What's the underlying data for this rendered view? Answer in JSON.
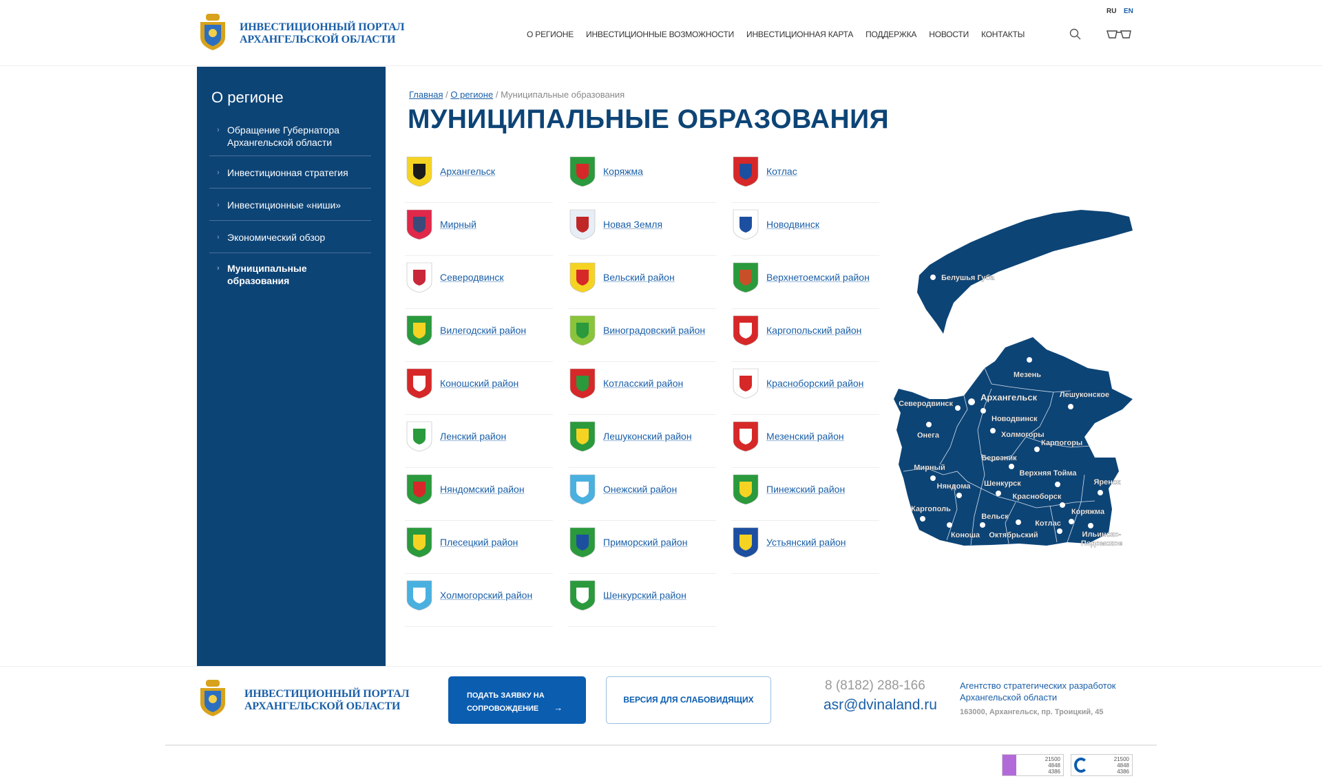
{
  "header": {
    "logo_title_line1": "ИНВЕСТИЦИОННЫЙ ПОРТАЛ",
    "logo_title_line2": "АРХАНГЕЛЬСКОЙ ОБЛАСТИ",
    "lang_ru": "RU",
    "lang_en": "EN",
    "nav": [
      "О РЕГИОНЕ",
      "ИНВЕСТИЦИОННЫЕ ВОЗМОЖНОСТИ",
      "ИНВЕСТИЦИОННАЯ КАРТА",
      "ПОДДЕРЖКА",
      "НОВОСТИ",
      "КОНТАКТЫ"
    ],
    "icons": [
      "search-icon",
      "glasses-icon"
    ]
  },
  "sidebar": {
    "title": "О регионе",
    "items": [
      {
        "label": "Обращение Губернатора Архангельской области"
      },
      {
        "label": "Инвестиционная стратегия"
      },
      {
        "label": "Инвестиционные «ниши»"
      },
      {
        "label": "Экономический обзор"
      },
      {
        "label": "Муниципальные образования",
        "active": true
      }
    ]
  },
  "breadcrumb": {
    "home": "Главная",
    "section": "О регионе",
    "current": "Муниципальные образования",
    "sep": "/"
  },
  "page_title": "МУНИЦИПАЛЬНЫЕ ОБРАЗОВАНИЯ",
  "municipalities": [
    {
      "name": "Архангельск",
      "colors": [
        "#f5d323",
        "#1b1b1b"
      ]
    },
    {
      "name": "Коряжма",
      "colors": [
        "#2a9a3c",
        "#d62828"
      ]
    },
    {
      "name": "Котлас",
      "colors": [
        "#d62828",
        "#1d4fa0"
      ]
    },
    {
      "name": "Мирный",
      "colors": [
        "#e0284a",
        "#3a4a7a"
      ]
    },
    {
      "name": "Новая Земля",
      "colors": [
        "#e8eef5",
        "#c02828"
      ]
    },
    {
      "name": "Новодвинск",
      "colors": [
        "#ffffff",
        "#1d4fa0"
      ]
    },
    {
      "name": "Северодвинск",
      "colors": [
        "#ffffff",
        "#c8283a"
      ]
    },
    {
      "name": "Вельский район",
      "colors": [
        "#f5d323",
        "#d62828"
      ]
    },
    {
      "name": "Верхнетоемский район",
      "colors": [
        "#2a9a3c",
        "#c85028"
      ]
    },
    {
      "name": "Вилегодский район",
      "colors": [
        "#2a9a3c",
        "#f5d323"
      ]
    },
    {
      "name": "Виноградовский район",
      "colors": [
        "#8ac43a",
        "#2a9a3c"
      ]
    },
    {
      "name": "Каргопольский район",
      "colors": [
        "#d62828",
        "#ffffff"
      ]
    },
    {
      "name": "Коношский район",
      "colors": [
        "#d62828",
        "#ffffff"
      ]
    },
    {
      "name": "Котласский район",
      "colors": [
        "#d62828",
        "#2a9a3c"
      ]
    },
    {
      "name": "Красноборский район",
      "colors": [
        "#ffffff",
        "#d62828"
      ]
    },
    {
      "name": "Ленский район",
      "colors": [
        "#ffffff",
        "#2a9a3c"
      ]
    },
    {
      "name": "Лешуконский район",
      "colors": [
        "#2a9a3c",
        "#f5d323"
      ]
    },
    {
      "name": "Мезенский район",
      "colors": [
        "#d62828",
        "#ffffff"
      ]
    },
    {
      "name": "Няндомский район",
      "colors": [
        "#2a9a3c",
        "#d62828"
      ]
    },
    {
      "name": "Онежский район",
      "colors": [
        "#4ab0e0",
        "#ffffff"
      ]
    },
    {
      "name": "Пинежский район",
      "colors": [
        "#2a9a3c",
        "#f5d323"
      ]
    },
    {
      "name": "Плесецкий район",
      "colors": [
        "#2a9a3c",
        "#f5d323"
      ]
    },
    {
      "name": "Приморский район",
      "colors": [
        "#2a9a3c",
        "#1d4fa0"
      ]
    },
    {
      "name": "Устьянский район",
      "colors": [
        "#1d4fa0",
        "#f5d323"
      ]
    },
    {
      "name": "Холмогорский район",
      "colors": [
        "#4ab0e0",
        "#ffffff"
      ]
    },
    {
      "name": "Шенкурский район",
      "colors": [
        "#2a9a3c",
        "#ffffff"
      ]
    }
  ],
  "map": {
    "fill": "#0d4476",
    "labels": [
      "Белушья Губа",
      "Мезень",
      "Архангельск",
      "Лешуконское",
      "Северодвинск",
      "Новодвинск",
      "Онега",
      "Холмогоры",
      "Карпогоры",
      "Березник",
      "Мирный",
      "Верхняя Тойма",
      "Няндома",
      "Шенкурск",
      "Яренск",
      "Красноборск",
      "Каргополь",
      "Коряжма",
      "Вельск",
      "Котлас",
      "Коноша",
      "Октябрьский",
      "Ильинско-Подомское"
    ]
  },
  "footer": {
    "logo_title_line1": "ИНВЕСТИЦИОННЫЙ ПОРТАЛ",
    "logo_title_line2": "АРХАНГЕЛЬСКОЙ ОБЛАСТИ",
    "apply_line1": "ПОДАТЬ ЗАЯВКУ НА",
    "apply_line2": "СОПРОВОЖДЕНИЕ",
    "accessible_version": "ВЕРСИЯ ДЛЯ СЛАБОВИДЯЩИХ",
    "phone": "8 (8182) 288-166",
    "email": "asr@dvinaland.ru",
    "agency_line1": "Агентство стратегических разработок",
    "agency_line2": "Архангельской области",
    "address": "163000, Архангельск, пр. Троицкий, 45",
    "counters": [
      {
        "values": [
          "21500",
          "4848",
          "4386"
        ]
      },
      {
        "values": [
          "21500",
          "4848",
          "4386"
        ]
      }
    ]
  },
  "colors": {
    "brand": "#0d4476",
    "link": "#1a5fa8",
    "button": "#0b5db0"
  }
}
